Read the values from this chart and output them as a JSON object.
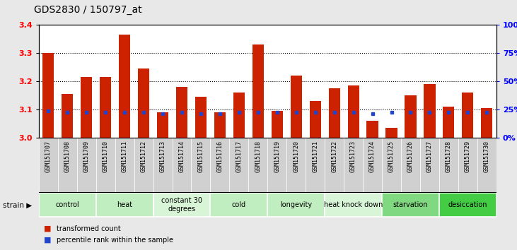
{
  "title": "GDS2830 / 150797_at",
  "samples": [
    "GSM151707",
    "GSM151708",
    "GSM151709",
    "GSM151710",
    "GSM151711",
    "GSM151712",
    "GSM151713",
    "GSM151714",
    "GSM151715",
    "GSM151716",
    "GSM151717",
    "GSM151718",
    "GSM151719",
    "GSM151720",
    "GSM151721",
    "GSM151722",
    "GSM151723",
    "GSM151724",
    "GSM151725",
    "GSM151726",
    "GSM151727",
    "GSM151728",
    "GSM151729",
    "GSM151730"
  ],
  "red_values": [
    3.3,
    3.155,
    3.215,
    3.215,
    3.365,
    3.245,
    3.09,
    3.18,
    3.145,
    3.09,
    3.16,
    3.33,
    3.095,
    3.22,
    3.13,
    3.175,
    3.185,
    3.06,
    3.035,
    3.15,
    3.19,
    3.11,
    3.16,
    3.105
  ],
  "blue_values": [
    3.095,
    3.09,
    3.09,
    3.09,
    3.09,
    3.09,
    3.085,
    3.09,
    3.085,
    3.085,
    3.09,
    3.09,
    3.09,
    3.09,
    3.09,
    3.09,
    3.09,
    3.085,
    3.09,
    3.09,
    3.09,
    3.09,
    3.09,
    3.09
  ],
  "groups": [
    {
      "label": "control",
      "start": 0,
      "end": 2,
      "color": "#c0eec0"
    },
    {
      "label": "heat",
      "start": 3,
      "end": 5,
      "color": "#c0eec0"
    },
    {
      "label": "constant 30\ndegrees",
      "start": 6,
      "end": 8,
      "color": "#d8f5d8"
    },
    {
      "label": "cold",
      "start": 9,
      "end": 11,
      "color": "#c0eec0"
    },
    {
      "label": "longevity",
      "start": 12,
      "end": 14,
      "color": "#c0eec0"
    },
    {
      "label": "heat knock down",
      "start": 15,
      "end": 17,
      "color": "#d8f5d8"
    },
    {
      "label": "starvation",
      "start": 18,
      "end": 20,
      "color": "#80d880"
    },
    {
      "label": "desiccation",
      "start": 21,
      "end": 23,
      "color": "#44cc44"
    }
  ],
  "ylim": [
    3.0,
    3.4
  ],
  "y_ticks_left": [
    3.0,
    3.1,
    3.2,
    3.3,
    3.4
  ],
  "y_ticks_right": [
    0,
    25,
    50,
    75,
    100
  ],
  "bar_color": "#cc2200",
  "blue_color": "#2244cc",
  "background_color": "#e8e8e8",
  "plot_bg": "#ffffff",
  "gsm_bg": "#d0d0d0",
  "title_fontsize": 10,
  "axis_tick_fontsize": 8,
  "gsm_fontsize": 6,
  "group_fontsize": 8
}
